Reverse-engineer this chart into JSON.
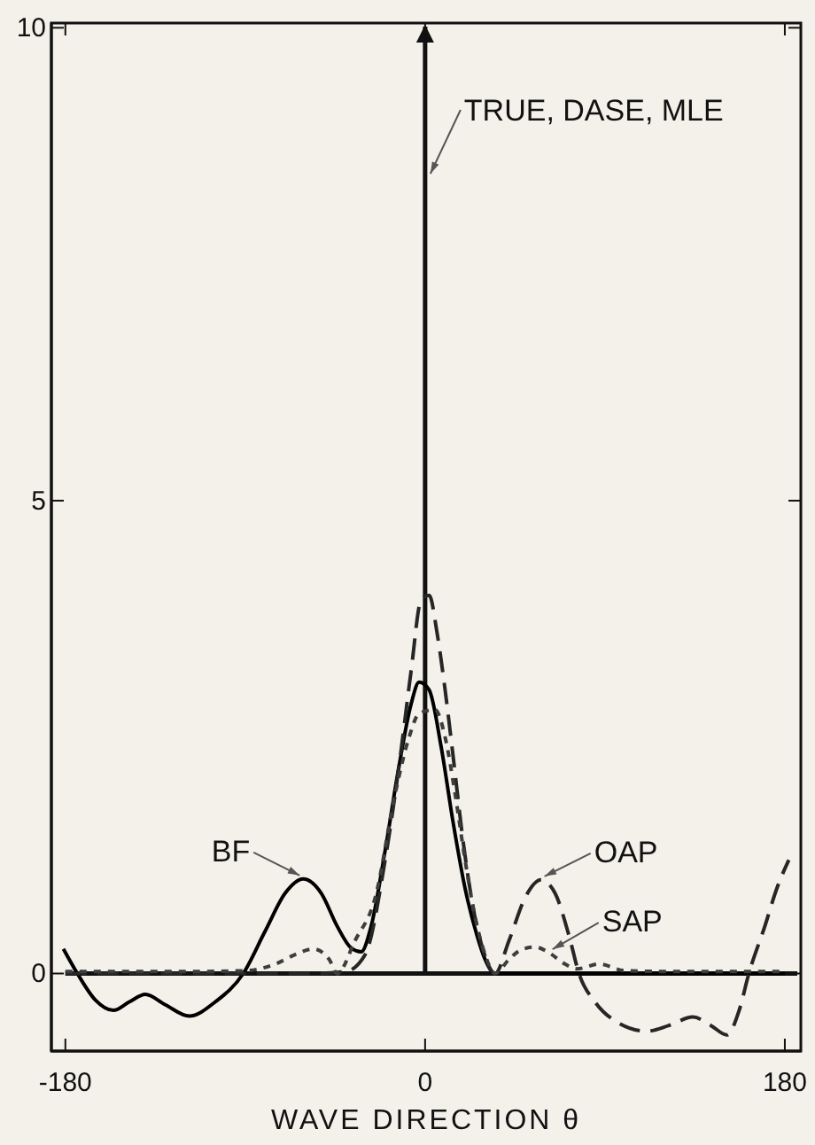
{
  "chart_data": {
    "type": "line",
    "xlabel": "WAVE DIRECTION θ",
    "xlim": [
      -187,
      188
    ],
    "ylim": [
      -0.82,
      10.05
    ],
    "xticks": [
      -180,
      0,
      180
    ],
    "yticks": [
      0,
      5,
      10
    ],
    "grid": false,
    "ref_lines": [
      {
        "axis": "y",
        "value": 0,
        "color": "#111111"
      },
      {
        "axis": "x",
        "value": 0,
        "label": "TRUE, DASE, MLE",
        "color": "#111111"
      }
    ],
    "series": [
      {
        "name": "BF",
        "color": "#000000",
        "line_style": "solid",
        "x": [
          -181,
          -174,
          -165,
          -156,
          -148,
          -140,
          -130,
          -118,
          -105,
          -91,
          -80,
          -70,
          -61,
          -52,
          -44,
          -37,
          -32,
          -27,
          -20,
          -13,
          -7,
          -3,
          2,
          8,
          14,
          20,
          26,
          30,
          35,
          45,
          60,
          90,
          120,
          150,
          180
        ],
        "values": [
          0.26,
          0,
          -0.28,
          -0.39,
          -0.3,
          -0.22,
          -0.33,
          -0.45,
          -0.3,
          0,
          0.45,
          0.85,
          1.0,
          0.85,
          0.5,
          0.27,
          0.23,
          0.5,
          1.3,
          2.2,
          2.85,
          3.08,
          3.0,
          2.4,
          1.6,
          0.9,
          0.4,
          0.15,
          0,
          0,
          0,
          0,
          0,
          0,
          0
        ]
      },
      {
        "name": "OAP",
        "color": "#262626",
        "line_style": "dashed",
        "x": [
          -180,
          -100,
          -60,
          -40,
          -30,
          -20,
          -13,
          -7,
          -2,
          2,
          6,
          10,
          14,
          19,
          24,
          29,
          35,
          42,
          50,
          58,
          65,
          72,
          77,
          85,
          95,
          111,
          122,
          134,
          143,
          151,
          157,
          162,
          170,
          176,
          182
        ],
        "values": [
          0,
          0,
          0,
          0.02,
          0.2,
          1.2,
          2.2,
          3.2,
          3.95,
          4.0,
          3.6,
          3.0,
          2.3,
          1.4,
          0.7,
          0.25,
          0,
          0.35,
          0.8,
          0.99,
          0.85,
          0.4,
          0,
          -0.3,
          -0.5,
          -0.61,
          -0.55,
          -0.46,
          -0.55,
          -0.65,
          -0.4,
          0,
          0.5,
          0.9,
          1.2
        ]
      },
      {
        "name": "SAP",
        "color": "#3d3d3d",
        "line_style": "dotted",
        "x": [
          -180,
          -120,
          -90,
          -75,
          -65,
          -56,
          -48,
          -44,
          -35,
          -25,
          -15,
          -8,
          -3,
          5,
          10,
          15,
          20,
          25,
          30,
          35,
          42,
          48,
          55,
          62,
          70,
          76,
          87,
          100,
          130,
          180
        ],
        "values": [
          0.02,
          0.02,
          0.03,
          0.1,
          0.2,
          0.26,
          0.15,
          0,
          0.35,
          0.8,
          1.9,
          2.5,
          2.75,
          2.79,
          2.5,
          1.9,
          1.2,
          0.6,
          0.2,
          0,
          0.15,
          0.25,
          0.28,
          0.22,
          0.1,
          0.05,
          0.1,
          0.03,
          0.02,
          0.02
        ]
      }
    ]
  }
}
